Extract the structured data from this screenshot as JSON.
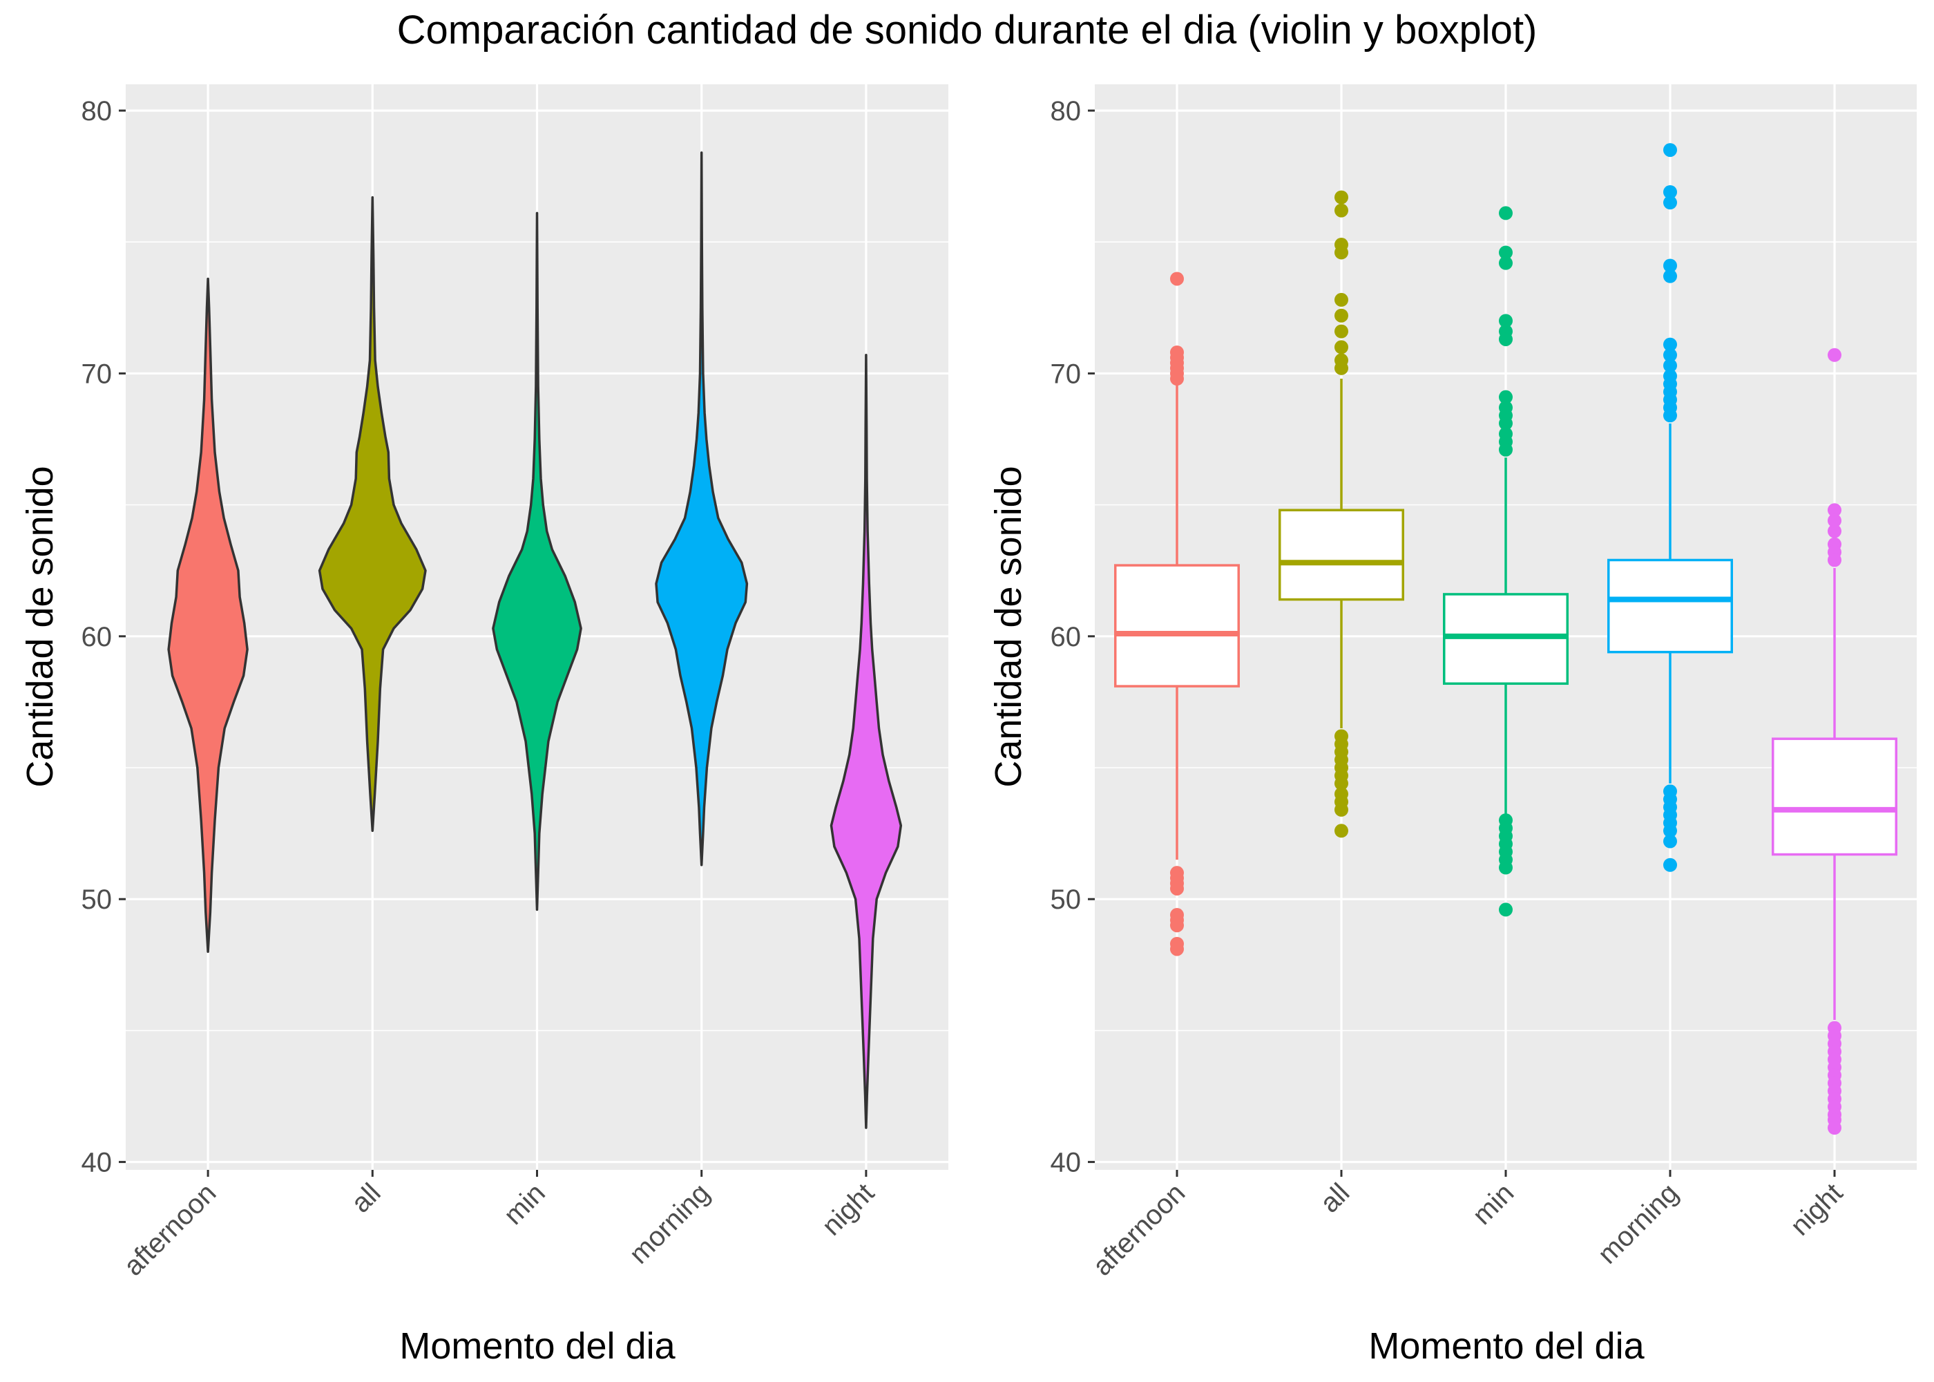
{
  "title": "Comparación cantidad de sonido durante el dia (violin y boxplot)",
  "colors": {
    "panel_bg": "#EBEBEB",
    "grid": "#FFFFFF",
    "tick_text": "#4D4D4D",
    "violin_outline": "#333333",
    "afternoon": "#F8766D",
    "all": "#A3A500",
    "min": "#00BF7D",
    "morning": "#00B0F6",
    "night": "#E76BF3"
  },
  "chart_data": [
    {
      "type": "violin",
      "xlabel": "Momento del dia",
      "ylabel": "Cantidad de sonido",
      "ylim": [
        39.7,
        81.0
      ],
      "yticks": [
        40,
        50,
        60,
        70,
        80
      ],
      "categories": [
        "afternoon",
        "all",
        "min",
        "morning",
        "night"
      ],
      "series": [
        {
          "name": "afternoon",
          "color": "#F8766D",
          "profile": [
            [
              48.0,
              0.0
            ],
            [
              49.5,
              0.03
            ],
            [
              51.0,
              0.05
            ],
            [
              53.0,
              0.09
            ],
            [
              55.0,
              0.14
            ],
            [
              56.5,
              0.22
            ],
            [
              57.5,
              0.34
            ],
            [
              58.5,
              0.47
            ],
            [
              59.5,
              0.52
            ],
            [
              60.5,
              0.48
            ],
            [
              61.5,
              0.42
            ],
            [
              62.5,
              0.4
            ],
            [
              63.5,
              0.3
            ],
            [
              64.5,
              0.21
            ],
            [
              65.5,
              0.15
            ],
            [
              67.0,
              0.09
            ],
            [
              69.0,
              0.05
            ],
            [
              71.0,
              0.03
            ],
            [
              72.5,
              0.015
            ],
            [
              73.6,
              0.0
            ]
          ]
        },
        {
          "name": "all",
          "color": "#A3A500",
          "profile": [
            [
              52.6,
              0.0
            ],
            [
              54.0,
              0.03
            ],
            [
              56.0,
              0.07
            ],
            [
              58.0,
              0.1
            ],
            [
              59.5,
              0.14
            ],
            [
              60.3,
              0.28
            ],
            [
              61.0,
              0.5
            ],
            [
              61.8,
              0.66
            ],
            [
              62.5,
              0.7
            ],
            [
              63.3,
              0.58
            ],
            [
              64.3,
              0.38
            ],
            [
              65.0,
              0.28
            ],
            [
              66.0,
              0.22
            ],
            [
              67.0,
              0.21
            ],
            [
              67.6,
              0.17
            ],
            [
              68.5,
              0.12
            ],
            [
              69.5,
              0.07
            ],
            [
              70.5,
              0.035
            ],
            [
              72.5,
              0.02
            ],
            [
              74.5,
              0.012
            ],
            [
              76.7,
              0.0
            ]
          ]
        },
        {
          "name": "min",
          "color": "#00BF7D",
          "profile": [
            [
              49.6,
              0.0
            ],
            [
              51.0,
              0.015
            ],
            [
              52.5,
              0.03
            ],
            [
              54.0,
              0.07
            ],
            [
              56.0,
              0.15
            ],
            [
              57.5,
              0.27
            ],
            [
              58.5,
              0.4
            ],
            [
              59.5,
              0.53
            ],
            [
              60.3,
              0.58
            ],
            [
              61.3,
              0.5
            ],
            [
              62.3,
              0.37
            ],
            [
              63.3,
              0.2
            ],
            [
              64.0,
              0.13
            ],
            [
              65.0,
              0.08
            ],
            [
              66.0,
              0.05
            ],
            [
              67.5,
              0.03
            ],
            [
              69.5,
              0.015
            ],
            [
              72.5,
              0.006
            ],
            [
              76.1,
              0.0
            ]
          ]
        },
        {
          "name": "morning",
          "color": "#00B0F6",
          "profile": [
            [
              51.3,
              0.0
            ],
            [
              52.5,
              0.02
            ],
            [
              53.5,
              0.035
            ],
            [
              55.0,
              0.07
            ],
            [
              56.5,
              0.13
            ],
            [
              57.5,
              0.2
            ],
            [
              58.5,
              0.28
            ],
            [
              59.5,
              0.34
            ],
            [
              60.5,
              0.45
            ],
            [
              61.3,
              0.58
            ],
            [
              62.0,
              0.6
            ],
            [
              62.8,
              0.53
            ],
            [
              63.7,
              0.35
            ],
            [
              64.5,
              0.22
            ],
            [
              65.5,
              0.15
            ],
            [
              66.5,
              0.1
            ],
            [
              67.5,
              0.065
            ],
            [
              68.5,
              0.04
            ],
            [
              70.0,
              0.02
            ],
            [
              72.5,
              0.01
            ],
            [
              75.0,
              0.005
            ],
            [
              78.4,
              0.0
            ]
          ]
        },
        {
          "name": "night",
          "color": "#E76BF3",
          "profile": [
            [
              41.3,
              0.0
            ],
            [
              42.5,
              0.012
            ],
            [
              44.0,
              0.03
            ],
            [
              45.5,
              0.05
            ],
            [
              47.0,
              0.07
            ],
            [
              48.5,
              0.09
            ],
            [
              50.0,
              0.14
            ],
            [
              51.0,
              0.26
            ],
            [
              52.0,
              0.42
            ],
            [
              52.8,
              0.46
            ],
            [
              53.5,
              0.4
            ],
            [
              54.5,
              0.3
            ],
            [
              55.5,
              0.22
            ],
            [
              56.5,
              0.17
            ],
            [
              57.5,
              0.14
            ],
            [
              58.5,
              0.11
            ],
            [
              59.5,
              0.08
            ],
            [
              60.5,
              0.06
            ],
            [
              62.0,
              0.04
            ],
            [
              64.0,
              0.02
            ],
            [
              66.0,
              0.01
            ],
            [
              68.0,
              0.006
            ],
            [
              70.7,
              0.0
            ]
          ]
        }
      ]
    },
    {
      "type": "boxplot",
      "xlabel": "Momento del dia",
      "ylabel": "Cantidad de sonido",
      "ylim": [
        39.7,
        81.0
      ],
      "yticks": [
        40,
        50,
        60,
        70,
        80
      ],
      "categories": [
        "afternoon",
        "all",
        "min",
        "morning",
        "night"
      ],
      "series": [
        {
          "name": "afternoon",
          "color": "#F8766D",
          "min": 51.5,
          "q1": 58.1,
          "median": 60.1,
          "q3": 62.7,
          "max": 69.7,
          "outliers": [
            73.6,
            70.8,
            70.6,
            70.4,
            70.2,
            70.0,
            69.8,
            51.0,
            50.8,
            50.6,
            50.4,
            49.4,
            49.2,
            49.0,
            48.3,
            48.1
          ]
        },
        {
          "name": "all",
          "color": "#A3A500",
          "min": 56.5,
          "q1": 61.4,
          "median": 62.8,
          "q3": 64.8,
          "max": 69.8,
          "outliers": [
            76.7,
            76.2,
            74.9,
            74.6,
            72.8,
            72.2,
            71.6,
            71.0,
            70.5,
            70.2,
            56.2,
            55.9,
            55.6,
            55.3,
            55.0,
            54.7,
            54.4,
            54.0,
            53.7,
            53.4,
            52.6
          ]
        },
        {
          "name": "min",
          "color": "#00BF7D",
          "min": 53.2,
          "q1": 58.2,
          "median": 60.0,
          "q3": 61.6,
          "max": 66.8,
          "outliers": [
            76.1,
            74.6,
            74.2,
            72.0,
            71.6,
            71.3,
            69.1,
            68.7,
            68.4,
            68.1,
            67.7,
            67.4,
            67.1,
            53.0,
            52.7,
            52.4,
            52.1,
            51.8,
            51.5,
            51.2,
            49.6
          ]
        },
        {
          "name": "morning",
          "color": "#00B0F6",
          "min": 54.4,
          "q1": 59.4,
          "median": 61.4,
          "q3": 62.9,
          "max": 68.1,
          "outliers": [
            78.5,
            76.9,
            76.5,
            74.1,
            73.7,
            71.1,
            70.7,
            70.3,
            69.9,
            69.6,
            69.3,
            69.0,
            68.7,
            68.4,
            54.1,
            53.8,
            53.5,
            53.2,
            52.9,
            52.6,
            52.2,
            51.3
          ]
        },
        {
          "name": "night",
          "color": "#E76BF3",
          "min": 45.4,
          "q1": 51.7,
          "median": 53.4,
          "q3": 56.1,
          "max": 62.6,
          "outliers": [
            70.7,
            64.8,
            64.4,
            64.0,
            63.5,
            63.2,
            62.9,
            45.1,
            44.8,
            44.5,
            44.2,
            43.9,
            43.6,
            43.3,
            43.0,
            42.7,
            42.4,
            42.1,
            41.8,
            41.6,
            41.3
          ]
        }
      ]
    }
  ]
}
